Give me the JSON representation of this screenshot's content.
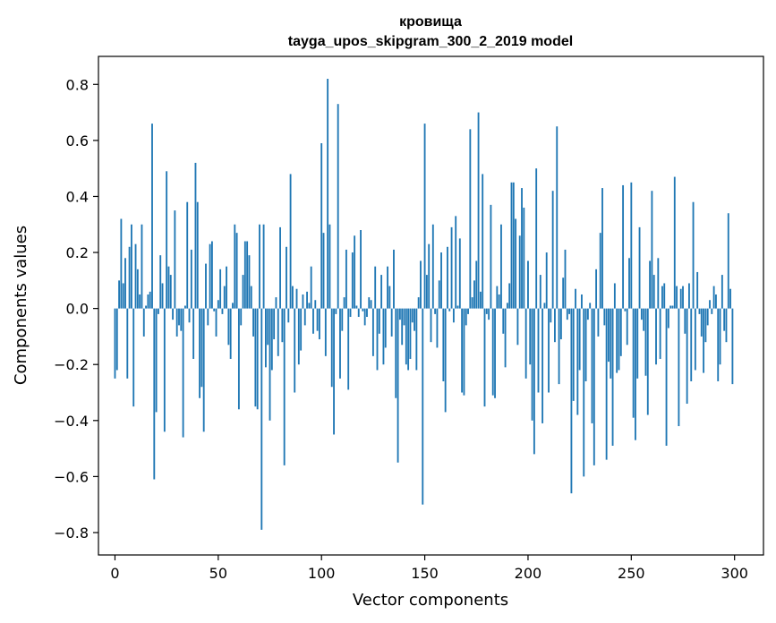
{
  "chart_data": {
    "type": "bar",
    "title": [
      "кровища",
      "tayga_upos_skipgram_300_2_2019 model"
    ],
    "xlabel": "Vector components",
    "ylabel": "Components values",
    "xlim": [
      -8,
      314
    ],
    "ylim": [
      -0.88,
      0.9
    ],
    "xticks": [
      0,
      50,
      100,
      150,
      200,
      250,
      300
    ],
    "yticks": [
      -0.8,
      -0.6,
      -0.4,
      -0.2,
      0.0,
      0.2,
      0.4,
      0.6,
      0.8
    ],
    "ytick_labels": [
      "−0.8",
      "−0.6",
      "−0.4",
      "−0.2",
      "0.0",
      "0.2",
      "0.4",
      "0.6",
      "0.8"
    ],
    "bar_color": "#1f77b4",
    "grid": false,
    "values": [
      -0.25,
      -0.22,
      0.1,
      0.32,
      0.09,
      0.18,
      -0.25,
      0.22,
      0.3,
      -0.35,
      0.23,
      0.14,
      0.05,
      0.3,
      -0.1,
      0.01,
      0.05,
      0.06,
      0.66,
      -0.61,
      -0.37,
      -0.02,
      0.19,
      0.09,
      -0.44,
      0.49,
      0.15,
      0.12,
      -0.04,
      0.35,
      -0.1,
      -0.06,
      -0.08,
      -0.46,
      0.01,
      0.38,
      -0.05,
      0.21,
      -0.18,
      0.52,
      0.38,
      -0.32,
      -0.28,
      -0.44,
      0.16,
      -0.06,
      0.23,
      0.24,
      -0.01,
      -0.1,
      0.03,
      0.14,
      -0.02,
      0.08,
      0.15,
      -0.13,
      -0.18,
      0.02,
      0.3,
      0.27,
      -0.36,
      -0.06,
      0.12,
      0.24,
      0.24,
      0.19,
      0.08,
      -0.1,
      -0.35,
      -0.36,
      0.3,
      -0.79,
      0.3,
      -0.21,
      -0.13,
      -0.4,
      -0.22,
      -0.11,
      0.04,
      -0.17,
      0.29,
      -0.12,
      -0.56,
      0.22,
      -0.05,
      0.48,
      0.08,
      -0.3,
      0.07,
      -0.2,
      -0.15,
      0.05,
      -0.06,
      0.06,
      0.02,
      0.15,
      -0.09,
      0.03,
      -0.08,
      -0.11,
      0.59,
      0.27,
      -0.17,
      0.82,
      0.3,
      -0.28,
      -0.45,
      -0.02,
      0.73,
      -0.25,
      -0.08,
      0.04,
      0.21,
      -0.29,
      -0.03,
      0.2,
      0.26,
      0.01,
      -0.03,
      0.28,
      -0.01,
      -0.06,
      -0.03,
      0.04,
      0.03,
      -0.17,
      0.15,
      -0.22,
      -0.09,
      0.12,
      -0.2,
      -0.14,
      0.15,
      0.08,
      -0.1,
      0.21,
      -0.32,
      -0.55,
      -0.04,
      -0.13,
      -0.06,
      -0.2,
      -0.22,
      -0.18,
      -0.05,
      -0.08,
      -0.22,
      0.04,
      0.17,
      -0.7,
      0.66,
      0.12,
      0.23,
      -0.12,
      0.3,
      -0.02,
      -0.14,
      0.1,
      0.2,
      -0.26,
      -0.37,
      0.22,
      -0.01,
      0.29,
      -0.05,
      0.33,
      0.01,
      0.25,
      -0.3,
      -0.31,
      -0.06,
      -0.02,
      0.64,
      0.04,
      0.1,
      0.17,
      0.7,
      0.06,
      0.48,
      -0.35,
      -0.02,
      -0.04,
      0.37,
      -0.31,
      -0.32,
      0.08,
      0.05,
      0.3,
      -0.09,
      -0.21,
      0.02,
      0.09,
      0.45,
      0.45,
      0.32,
      -0.13,
      0.26,
      0.43,
      0.36,
      -0.25,
      0.17,
      -0.2,
      -0.4,
      -0.52,
      0.5,
      -0.3,
      0.12,
      -0.41,
      0.02,
      0.2,
      -0.3,
      -0.05,
      0.42,
      -0.12,
      0.65,
      -0.27,
      -0.11,
      0.11,
      0.21,
      -0.04,
      -0.02,
      -0.66,
      -0.33,
      0.07,
      -0.38,
      -0.22,
      0.05,
      -0.6,
      -0.26,
      -0.04,
      0.02,
      -0.41,
      -0.56,
      0.14,
      -0.1,
      0.27,
      0.43,
      -0.06,
      -0.54,
      -0.19,
      -0.25,
      -0.49,
      0.09,
      -0.23,
      -0.22,
      -0.17,
      0.44,
      -0.01,
      -0.13,
      0.18,
      0.45,
      -0.39,
      -0.47,
      -0.25,
      0.29,
      -0.04,
      -0.08,
      -0.24,
      -0.38,
      0.17,
      0.42,
      0.12,
      -0.2,
      0.18,
      -0.18,
      0.08,
      0.09,
      -0.49,
      -0.07,
      0.01,
      0.01,
      0.47,
      0.08,
      -0.42,
      0.07,
      0.08,
      -0.09,
      -0.34,
      0.09,
      -0.26,
      0.38,
      -0.22,
      0.13,
      -0.02,
      -0.1,
      -0.23,
      -0.12,
      -0.06,
      0.03,
      -0.02,
      0.08,
      0.05,
      -0.26,
      -0.2,
      0.12,
      -0.08,
      -0.12,
      0.34,
      0.07,
      -0.27
    ]
  }
}
